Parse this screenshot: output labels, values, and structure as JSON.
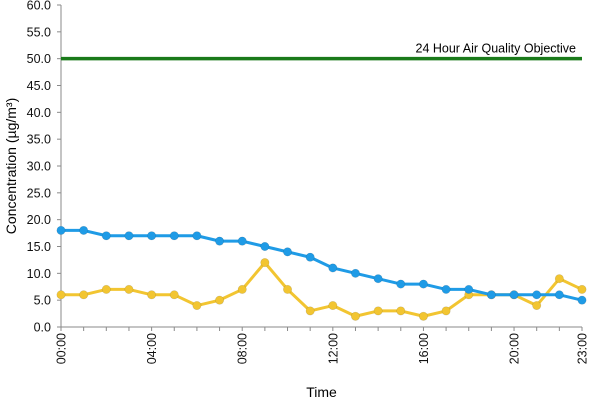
{
  "chart_data": {
    "type": "line",
    "title": "",
    "xlabel": "Time",
    "ylabel": "Concentration (µg/m³)",
    "ylim": [
      0,
      60
    ],
    "y_ticks": [
      "0.0",
      "5.0",
      "10.0",
      "15.0",
      "20.0",
      "25.0",
      "30.0",
      "35.0",
      "40.0",
      "45.0",
      "50.0",
      "55.0",
      "60.0"
    ],
    "x": [
      "00:00",
      "01:00",
      "02:00",
      "03:00",
      "04:00",
      "05:00",
      "06:00",
      "07:00",
      "08:00",
      "09:00",
      "10:00",
      "11:00",
      "12:00",
      "13:00",
      "14:00",
      "15:00",
      "16:00",
      "17:00",
      "18:00",
      "19:00",
      "20:00",
      "21:00",
      "22:00",
      "23:00"
    ],
    "x_tick_labels": [
      "00:00",
      "04:00",
      "08:00",
      "12:00",
      "16:00",
      "20:00",
      "23:00"
    ],
    "grid": false,
    "legend": "none",
    "series": [
      {
        "color": "#1f9be6",
        "values": [
          18,
          18,
          17,
          17,
          17,
          17,
          17,
          16,
          16,
          15,
          14,
          13,
          11,
          10,
          9,
          8,
          8,
          7,
          7,
          6,
          6,
          6,
          6,
          5
        ]
      },
      {
        "color": "#f2c531",
        "values": [
          6,
          6,
          7,
          7,
          6,
          6,
          4,
          5,
          7,
          12,
          7,
          3,
          4,
          2,
          3,
          3,
          2,
          3,
          6,
          6,
          6,
          4,
          9,
          7
        ]
      }
    ],
    "reference_line": {
      "label": "24 Hour Air Quality Objective",
      "value": 50,
      "color": "#1a7a1a"
    }
  }
}
